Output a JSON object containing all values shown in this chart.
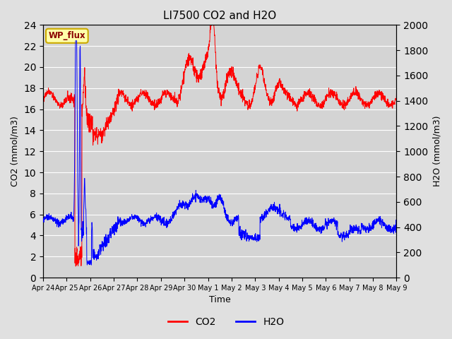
{
  "title": "LI7500 CO2 and H2O",
  "xlabel": "Time",
  "ylabel_left": "CO2 (mmol/m3)",
  "ylabel_right": "H2O (mmol/m3)",
  "ylim_left": [
    0,
    24
  ],
  "ylim_right": [
    0,
    2000
  ],
  "yticks_left": [
    0,
    2,
    4,
    6,
    8,
    10,
    12,
    14,
    16,
    18,
    20,
    22,
    24
  ],
  "yticks_right": [
    0,
    200,
    400,
    600,
    800,
    1000,
    1200,
    1400,
    1600,
    1800,
    2000
  ],
  "xtick_labels": [
    "Apr 24",
    "Apr 25",
    "Apr 26",
    "Apr 27",
    "Apr 28",
    "Apr 29",
    "Apr 30",
    "May 1",
    "May 2",
    "May 3",
    "May 4",
    "May 5",
    "May 6",
    "May 7",
    "May 8",
    "May 9"
  ],
  "co2_color": "#ff0000",
  "h2o_color": "#0000ff",
  "bg_color": "#e0e0e0",
  "plot_bg_color": "#d4d4d4",
  "annotation_text": "WP_flux",
  "annotation_bg": "#ffffaa",
  "annotation_border": "#ccaa00",
  "legend_co2": "CO2",
  "legend_h2o": "H2O",
  "seed": 42
}
